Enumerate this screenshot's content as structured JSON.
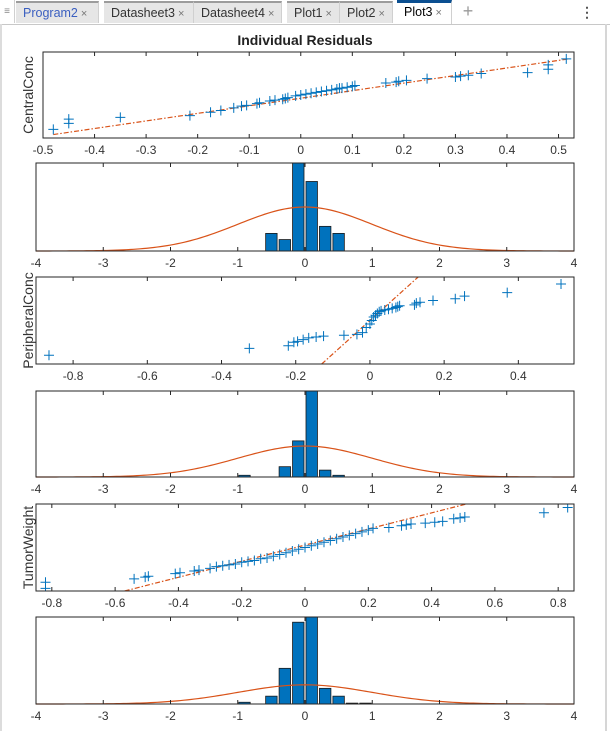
{
  "tabs": [
    {
      "label": "Program2",
      "link": true,
      "active": false
    },
    {
      "label": "Datasheet3",
      "link": false,
      "active": false
    },
    {
      "label": "Datasheet4",
      "link": false,
      "active": false
    },
    {
      "label": "Plot1",
      "link": false,
      "active": false
    },
    {
      "label": "Plot2",
      "link": false,
      "active": false
    },
    {
      "label": "Plot3",
      "link": false,
      "active": true
    }
  ],
  "tab_close_glyph": "×",
  "add_tab_glyph": "+",
  "menu_glyph": "⋮",
  "grip_glyph": "≡",
  "figure_title": "Individual Residuals",
  "colors": {
    "marker": "#0072BD",
    "fit": "#D95319",
    "bar": "#0072BD",
    "axis": "#262626"
  },
  "chart_data": [
    {
      "type": "scatter",
      "name": "qq-centralconc",
      "title": "Individual Residuals",
      "ylabel": "CentralConc",
      "xlim": [
        -0.5,
        0.53
      ],
      "ylim": [
        0,
        1
      ],
      "xticks": [
        -0.5,
        -0.4,
        -0.3,
        -0.2,
        -0.1,
        0,
        0.1,
        0.2,
        0.3,
        0.4,
        0.5
      ],
      "xticklabels": [
        "-0.5",
        "-0.4",
        "-0.3",
        "-0.2",
        "-0.1",
        "0",
        "0.1",
        "0.2",
        "0.3",
        "0.4",
        "0.5"
      ],
      "fit_line": {
        "x": [
          -0.48,
          0.52
        ],
        "y": [
          0.04,
          0.92
        ],
        "style": "dash-dot"
      },
      "points": [
        [
          -0.48,
          0.1
        ],
        [
          -0.45,
          0.17
        ],
        [
          -0.45,
          0.22
        ],
        [
          -0.35,
          0.24
        ],
        [
          -0.215,
          0.26
        ],
        [
          -0.175,
          0.3
        ],
        [
          -0.155,
          0.32
        ],
        [
          -0.13,
          0.35
        ],
        [
          -0.115,
          0.37
        ],
        [
          -0.105,
          0.38
        ],
        [
          -0.085,
          0.4
        ],
        [
          -0.08,
          0.41
        ],
        [
          -0.06,
          0.43
        ],
        [
          -0.05,
          0.44
        ],
        [
          -0.035,
          0.45
        ],
        [
          -0.03,
          0.46
        ],
        [
          -0.025,
          0.47
        ],
        [
          -0.01,
          0.49
        ],
        [
          0.0,
          0.5
        ],
        [
          0.01,
          0.51
        ],
        [
          0.02,
          0.52
        ],
        [
          0.03,
          0.53
        ],
        [
          0.04,
          0.54
        ],
        [
          0.05,
          0.55
        ],
        [
          0.06,
          0.56
        ],
        [
          0.07,
          0.57
        ],
        [
          0.075,
          0.58
        ],
        [
          0.08,
          0.58
        ],
        [
          0.09,
          0.59
        ],
        [
          0.1,
          0.6
        ],
        [
          0.105,
          0.61
        ],
        [
          0.165,
          0.64
        ],
        [
          0.185,
          0.65
        ],
        [
          0.19,
          0.66
        ],
        [
          0.205,
          0.67
        ],
        [
          0.245,
          0.69
        ],
        [
          0.3,
          0.71
        ],
        [
          0.31,
          0.72
        ],
        [
          0.325,
          0.73
        ],
        [
          0.35,
          0.75
        ],
        [
          0.44,
          0.76
        ],
        [
          0.48,
          0.8
        ],
        [
          0.48,
          0.85
        ],
        [
          0.515,
          0.92
        ]
      ]
    },
    {
      "type": "bar",
      "name": "hist-centralconc",
      "xlim": [
        -4,
        4
      ],
      "xticks": [
        -4,
        -3,
        -2,
        -1,
        0,
        1,
        2,
        3,
        4
      ],
      "xticklabels": [
        "-4",
        "-3",
        "-2",
        "-1",
        "0",
        "1",
        "2",
        "3",
        "4"
      ],
      "bin_width": 0.2,
      "bins": [
        {
          "center": -0.5,
          "value": 0.2
        },
        {
          "center": -0.3,
          "value": 0.13
        },
        {
          "center": -0.1,
          "value": 1.0
        },
        {
          "center": 0.1,
          "value": 0.79
        },
        {
          "center": 0.3,
          "value": 0.28
        },
        {
          "center": 0.5,
          "value": 0.2
        }
      ],
      "normal_curve": {
        "mean": 0,
        "std": 1,
        "peak": 0.5
      }
    },
    {
      "type": "scatter",
      "name": "qq-peripheralconc",
      "ylabel": "PeripheralConc",
      "xlim": [
        -0.9,
        0.55
      ],
      "ylim": [
        0,
        1
      ],
      "xticks": [
        -0.8,
        -0.6,
        -0.4,
        -0.2,
        0,
        0.2,
        0.4
      ],
      "xticklabels": [
        "-0.8",
        "-0.6",
        "-0.4",
        "-0.2",
        "0",
        "0.2",
        "0.4"
      ],
      "fit_line": {
        "x": [
          -0.13,
          0.13
        ],
        "y": [
          0.0,
          1.0
        ],
        "style": "dash-dot"
      },
      "points": [
        [
          -0.865,
          0.1
        ],
        [
          -0.325,
          0.18
        ],
        [
          -0.22,
          0.21
        ],
        [
          -0.205,
          0.25
        ],
        [
          -0.195,
          0.26
        ],
        [
          -0.18,
          0.28
        ],
        [
          -0.165,
          0.3
        ],
        [
          -0.145,
          0.31
        ],
        [
          -0.125,
          0.32
        ],
        [
          -0.07,
          0.33
        ],
        [
          -0.035,
          0.34
        ],
        [
          -0.02,
          0.36
        ],
        [
          -0.01,
          0.42
        ],
        [
          0.0,
          0.46
        ],
        [
          0.005,
          0.5
        ],
        [
          0.01,
          0.54
        ],
        [
          0.015,
          0.56
        ],
        [
          0.02,
          0.58
        ],
        [
          0.025,
          0.6
        ],
        [
          0.03,
          0.61
        ],
        [
          0.04,
          0.62
        ],
        [
          0.05,
          0.63
        ],
        [
          0.06,
          0.64
        ],
        [
          0.07,
          0.65
        ],
        [
          0.075,
          0.66
        ],
        [
          0.08,
          0.67
        ],
        [
          0.12,
          0.68
        ],
        [
          0.125,
          0.7
        ],
        [
          0.135,
          0.71
        ],
        [
          0.17,
          0.73
        ],
        [
          0.23,
          0.75
        ],
        [
          0.255,
          0.78
        ],
        [
          0.37,
          0.82
        ],
        [
          0.515,
          0.92
        ]
      ]
    },
    {
      "type": "bar",
      "name": "hist-peripheralconc",
      "xlim": [
        -4,
        4
      ],
      "xticks": [
        -4,
        -3,
        -2,
        -1,
        0,
        1,
        2,
        3,
        4
      ],
      "xticklabels": [
        "-4",
        "-3",
        "-2",
        "-1",
        "0",
        "1",
        "2",
        "3",
        "4"
      ],
      "bin_width": 0.2,
      "bins": [
        {
          "center": -0.9,
          "value": 0.02
        },
        {
          "center": -0.3,
          "value": 0.12
        },
        {
          "center": -0.1,
          "value": 0.42
        },
        {
          "center": 0.1,
          "value": 1.0
        },
        {
          "center": 0.3,
          "value": 0.08
        },
        {
          "center": 0.5,
          "value": 0.02
        }
      ],
      "normal_curve": {
        "mean": 0,
        "std": 1,
        "peak": 0.36
      }
    },
    {
      "type": "scatter",
      "name": "qq-tumorweight",
      "ylabel": "TumorWeight",
      "xlim": [
        -0.85,
        0.85
      ],
      "ylim": [
        0,
        1
      ],
      "xticks": [
        -0.8,
        -0.6,
        -0.4,
        -0.2,
        0,
        0.2,
        0.4,
        0.6,
        0.8
      ],
      "xticklabels": [
        "-0.8",
        "-0.6",
        "-0.4",
        "-0.2",
        "0",
        "0.2",
        "0.4",
        "0.6",
        "0.8"
      ],
      "fit_line": {
        "x": [
          -0.57,
          0.51
        ],
        "y": [
          0.0,
          1.0
        ],
        "style": "dash-dot"
      },
      "points": [
        [
          -0.82,
          0.03
        ],
        [
          -0.82,
          0.1
        ],
        [
          -0.54,
          0.14
        ],
        [
          -0.505,
          0.16
        ],
        [
          -0.495,
          0.17
        ],
        [
          -0.41,
          0.2
        ],
        [
          -0.395,
          0.21
        ],
        [
          -0.35,
          0.23
        ],
        [
          -0.335,
          0.24
        ],
        [
          -0.3,
          0.26
        ],
        [
          -0.28,
          0.28
        ],
        [
          -0.26,
          0.29
        ],
        [
          -0.24,
          0.3
        ],
        [
          -0.22,
          0.31
        ],
        [
          -0.2,
          0.33
        ],
        [
          -0.18,
          0.34
        ],
        [
          -0.16,
          0.35
        ],
        [
          -0.14,
          0.37
        ],
        [
          -0.12,
          0.38
        ],
        [
          -0.1,
          0.4
        ],
        [
          -0.08,
          0.42
        ],
        [
          -0.06,
          0.44
        ],
        [
          -0.04,
          0.46
        ],
        [
          -0.02,
          0.48
        ],
        [
          0.0,
          0.5
        ],
        [
          0.02,
          0.52
        ],
        [
          0.04,
          0.54
        ],
        [
          0.06,
          0.56
        ],
        [
          0.08,
          0.58
        ],
        [
          0.1,
          0.6
        ],
        [
          0.12,
          0.62
        ],
        [
          0.14,
          0.64
        ],
        [
          0.16,
          0.66
        ],
        [
          0.18,
          0.68
        ],
        [
          0.2,
          0.7
        ],
        [
          0.215,
          0.72
        ],
        [
          0.265,
          0.73
        ],
        [
          0.305,
          0.75
        ],
        [
          0.32,
          0.76
        ],
        [
          0.335,
          0.77
        ],
        [
          0.38,
          0.78
        ],
        [
          0.41,
          0.79
        ],
        [
          0.435,
          0.8
        ],
        [
          0.47,
          0.83
        ],
        [
          0.49,
          0.84
        ],
        [
          0.505,
          0.85
        ],
        [
          0.755,
          0.9
        ],
        [
          0.83,
          0.96
        ]
      ]
    },
    {
      "type": "bar",
      "name": "hist-tumorweight",
      "xlim": [
        -4,
        4
      ],
      "xticks": [
        -4,
        -3,
        -2,
        -1,
        0,
        1,
        2,
        3,
        4
      ],
      "xticklabels": [
        "-4",
        "-3",
        "-2",
        "-1",
        "0",
        "1",
        "2",
        "3",
        "4"
      ],
      "bin_width": 0.2,
      "bins": [
        {
          "center": -0.9,
          "value": 0.02
        },
        {
          "center": -0.5,
          "value": 0.09
        },
        {
          "center": -0.3,
          "value": 0.41
        },
        {
          "center": -0.1,
          "value": 0.94
        },
        {
          "center": 0.1,
          "value": 1.0
        },
        {
          "center": 0.3,
          "value": 0.18
        },
        {
          "center": 0.5,
          "value": 0.09
        },
        {
          "center": 0.7,
          "value": 0.01
        },
        {
          "center": 0.9,
          "value": 0.01
        }
      ],
      "normal_curve": {
        "mean": 0,
        "std": 1,
        "peak": 0.22
      }
    }
  ]
}
